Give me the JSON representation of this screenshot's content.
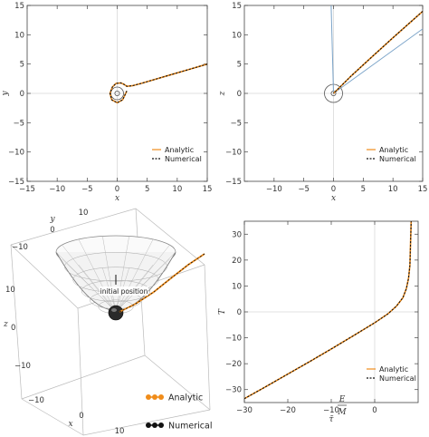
{
  "chart_data": [
    {
      "type": "line",
      "panel": "top-left",
      "xlabel": "x",
      "ylabel": "y",
      "xlim": [
        -15,
        15
      ],
      "ylim": [
        -15,
        15
      ],
      "xticks": [
        -15,
        -10,
        -5,
        0,
        5,
        10,
        15
      ],
      "yticks": [
        -15,
        -10,
        -5,
        0,
        5,
        10,
        15
      ],
      "xtick_labels": [
        "−15",
        "−10",
        "−5",
        "0",
        "5",
        "10",
        "15"
      ],
      "ytick_labels": [
        "−15",
        "−10",
        "−5",
        "0",
        "5",
        "10",
        "15"
      ],
      "legend": "bottom-right",
      "series": [
        {
          "name": "Analytic",
          "style": "solid",
          "color": "#f08c1a",
          "x": [
            15,
            12,
            9,
            6,
            4,
            2.5,
            1.6,
            1.2,
            0.6,
            -0.2,
            -0.8,
            -1.2,
            -0.9,
            0,
            0.9,
            1.6
          ],
          "y": [
            5,
            4.1,
            3.2,
            2.3,
            1.7,
            1.3,
            1.2,
            1.5,
            1.8,
            1.7,
            1.1,
            0,
            -1.1,
            -1.6,
            -1.1,
            0.4
          ]
        },
        {
          "name": "Numerical",
          "style": "dashed",
          "color": "#111111",
          "x": [
            15,
            12,
            9,
            6,
            4,
            2.5,
            1.6,
            1.2,
            0.6,
            -0.2,
            -0.8,
            -1.2,
            -0.9,
            0,
            0.9,
            1.6
          ],
          "y": [
            5,
            4.1,
            3.2,
            2.3,
            1.7,
            1.3,
            1.2,
            1.5,
            1.8,
            1.7,
            1.1,
            0,
            -1.1,
            -1.6,
            -1.1,
            0.4
          ]
        }
      ]
    },
    {
      "type": "line",
      "panel": "top-right",
      "xlabel": "x",
      "ylabel": "z",
      "xlim": [
        -15,
        15
      ],
      "ylim": [
        -15,
        15
      ],
      "xticks": [
        -10,
        -5,
        0,
        5,
        10,
        15
      ],
      "yticks": [
        -15,
        -10,
        -5,
        0,
        5,
        10,
        15
      ],
      "xtick_labels": [
        "−10",
        "−5",
        "0",
        "5",
        "10",
        "15"
      ],
      "ytick_labels": [
        "−15",
        "−10",
        "−5",
        "0",
        "5",
        "10",
        "15"
      ],
      "legend": "bottom-right",
      "series": [
        {
          "name": "Analytic",
          "style": "solid",
          "color": "#f08c1a",
          "x": [
            15,
            10,
            6,
            3,
            1.5,
            0.5,
            0
          ],
          "y": [
            14,
            9.5,
            5.8,
            3,
            1.5,
            0.5,
            0
          ]
        },
        {
          "name": "Numerical",
          "style": "dashed",
          "color": "#111111",
          "x": [
            15,
            10,
            6,
            3,
            1.5,
            0.5,
            0
          ],
          "y": [
            14,
            9.5,
            5.8,
            3,
            1.5,
            0.5,
            0
          ]
        }
      ]
    },
    {
      "type": "scatter",
      "panel": "bottom-left",
      "xlabel": "x",
      "ylabel": "y",
      "zlabel": "z",
      "xtick_labels": [
        "−10",
        "0",
        "10"
      ],
      "ytick_labels": [
        "10",
        "0",
        "−10"
      ],
      "ztick_labels": [
        "10",
        "0",
        "−10"
      ],
      "annotation": "initial position",
      "legend": "bottom-right",
      "series": [
        {
          "name": "Analytic",
          "color": "#f08c1a"
        },
        {
          "name": "Numerical",
          "color": "#111111"
        }
      ]
    },
    {
      "type": "line",
      "panel": "bottom-right",
      "xlabel": "τ̃",
      "xlabel_fraction": {
        "numerator": "E",
        "denominator": "M"
      },
      "ylabel": "T",
      "xlim": [
        -30,
        10
      ],
      "ylim": [
        -35,
        35
      ],
      "xticks": [
        -30,
        -20,
        -10,
        0
      ],
      "yticks": [
        -30,
        -20,
        -10,
        0,
        10,
        20,
        30
      ],
      "xtick_labels": [
        "−30",
        "−20",
        "−10",
        "0"
      ],
      "ytick_labels": [
        "−30",
        "−20",
        "−10",
        "0",
        "10",
        "20",
        "30"
      ],
      "legend": "bottom-right",
      "series": [
        {
          "name": "Analytic",
          "style": "solid",
          "color": "#f08c1a",
          "x": [
            -30,
            -25,
            -20,
            -15,
            -10,
            -5,
            0,
            3,
            5,
            6.5,
            7.3,
            7.8,
            8.1,
            8.4
          ],
          "y": [
            -33.5,
            -28.8,
            -24,
            -19.2,
            -14.3,
            -9.3,
            -4.2,
            -0.8,
            2.2,
            5.5,
            9,
            13,
            18,
            35
          ]
        },
        {
          "name": "Numerical",
          "style": "dashed",
          "color": "#111111",
          "x": [
            -30,
            -25,
            -20,
            -15,
            -10,
            -5,
            0,
            3,
            5,
            6.5,
            7.3,
            7.8,
            8.1,
            8.4
          ],
          "y": [
            -33.5,
            -28.8,
            -24,
            -19.2,
            -14.3,
            -9.3,
            -4.2,
            -0.8,
            2.2,
            5.5,
            9,
            13,
            18,
            35
          ]
        }
      ]
    }
  ]
}
